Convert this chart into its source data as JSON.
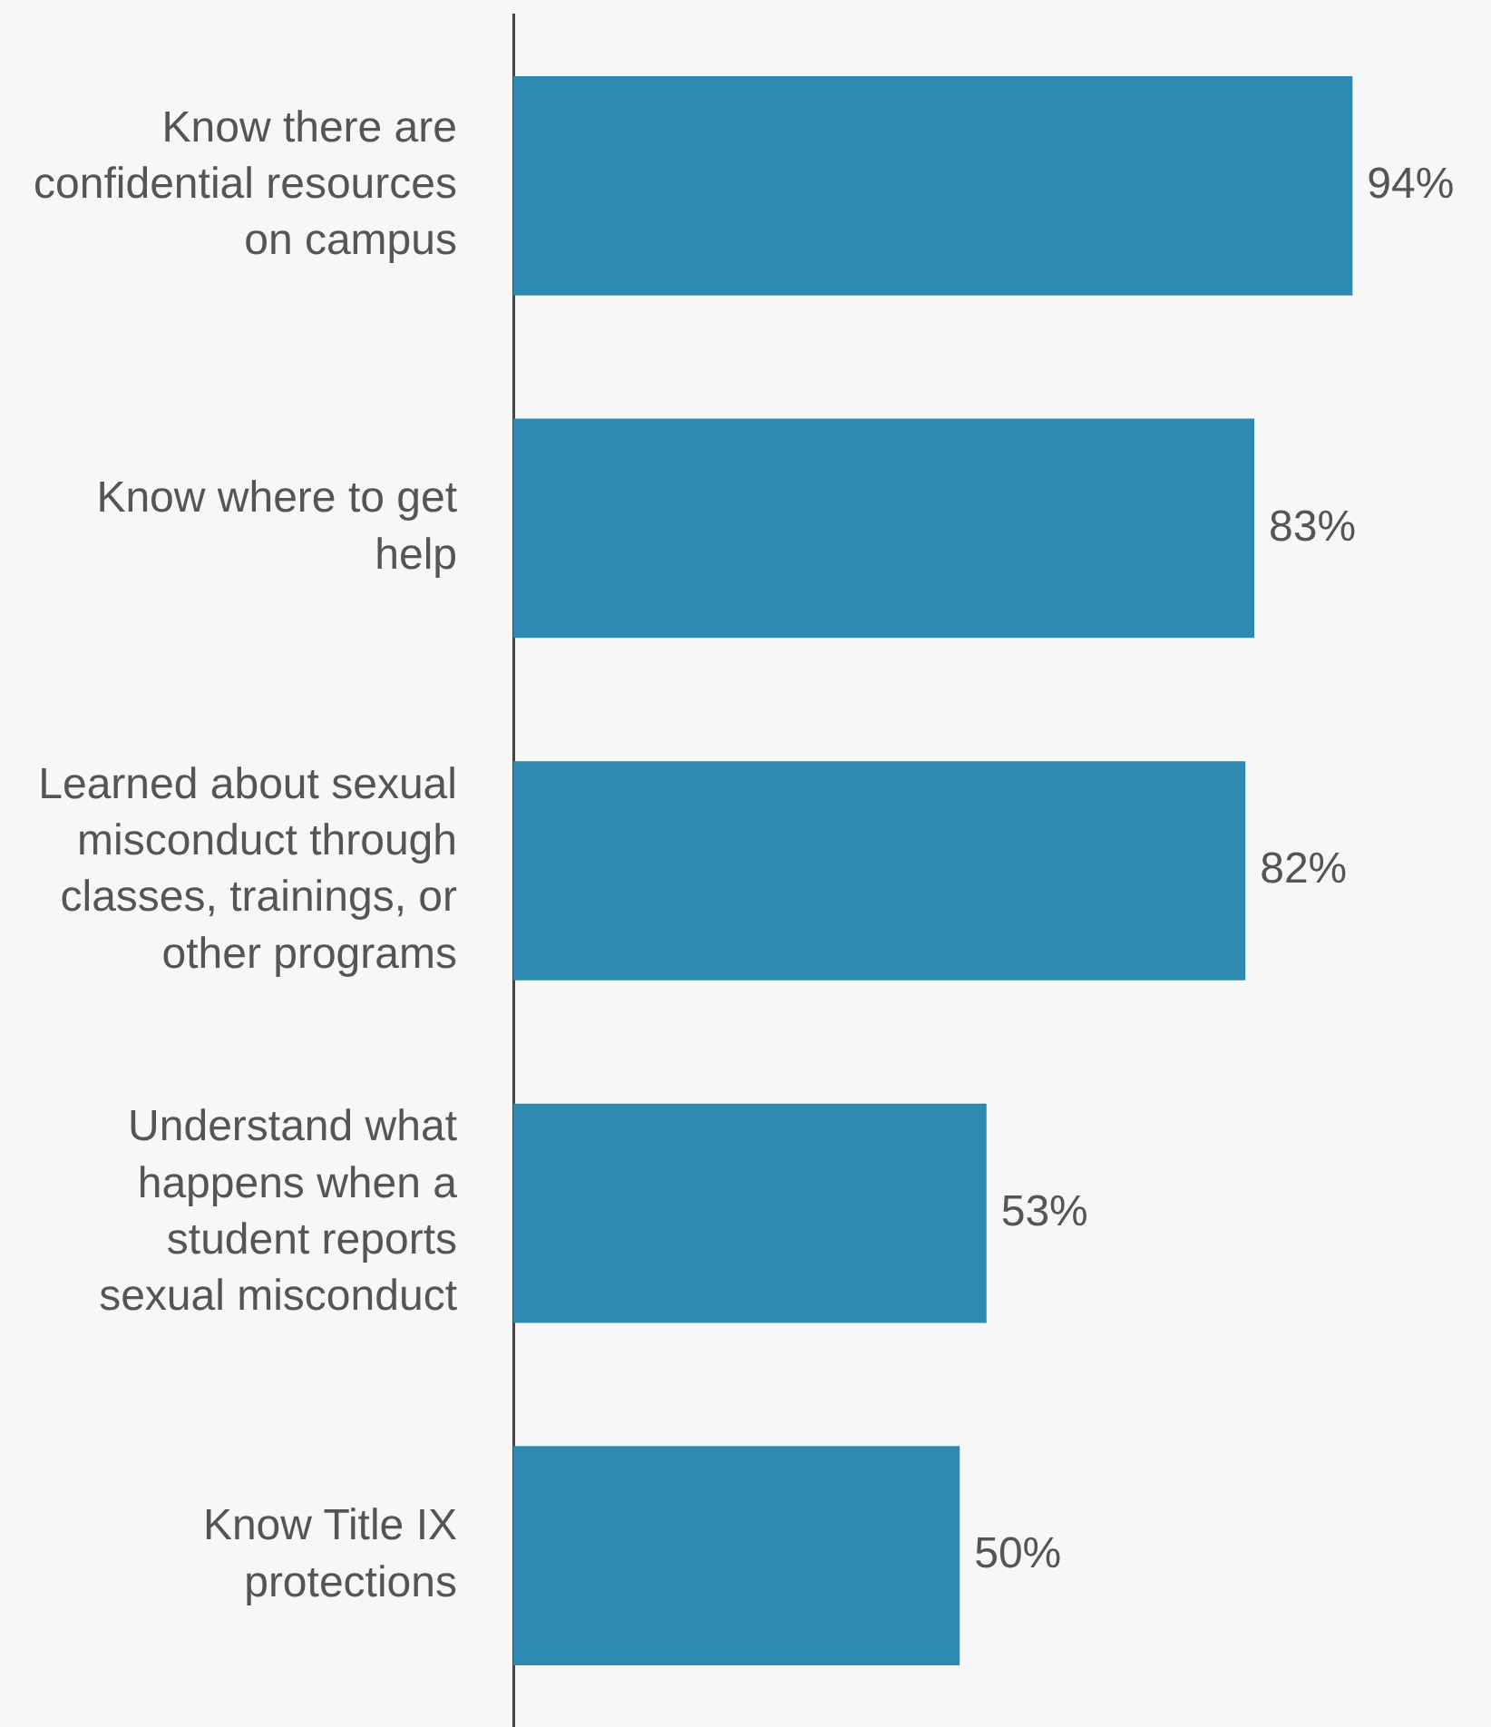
{
  "chart_data": {
    "type": "bar",
    "orientation": "horizontal",
    "categories": [
      "Know there are confidential resources on campus",
      "Know where to get help",
      "Learned about sexual misconduct through classes, trainings, or other programs",
      "Understand what happens when a student reports sexual misconduct",
      "Know Title IX protections"
    ],
    "values": [
      94,
      83,
      82,
      53,
      50
    ],
    "color": "#2e8ab0",
    "value_labels": [
      "94%",
      "83%",
      "82%",
      "53%",
      "50%"
    ],
    "legend": false
  }
}
